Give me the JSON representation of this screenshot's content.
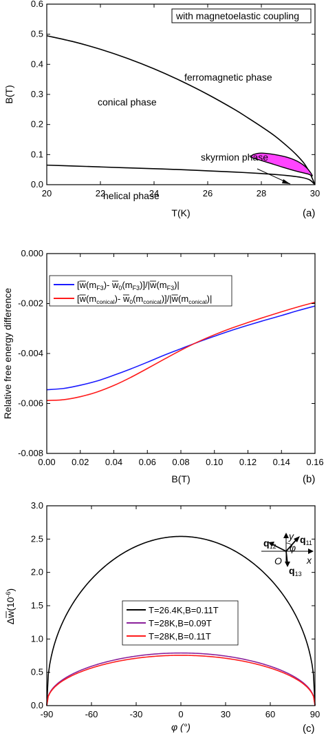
{
  "chart_data": [
    {
      "type": "line",
      "panel_label": "(a)",
      "xlabel": "T(K)",
      "ylabel": "B(T)",
      "xlim": [
        20,
        30
      ],
      "ylim": [
        0,
        0.6
      ],
      "xticks": [
        20,
        22,
        24,
        26,
        28,
        30
      ],
      "yticks": [
        0.0,
        0.1,
        0.2,
        0.3,
        0.4,
        0.5,
        0.6
      ],
      "annotations": {
        "box": "with magnetoelastic coupling",
        "conical": "conical phase",
        "ferromagnetic": "ferromagnetic phase",
        "skyrmion": "skyrmion phase",
        "helical": "helical phase"
      },
      "series": [
        {
          "key": "upper_boundary",
          "color": "#000000",
          "x": [
            20,
            21,
            22,
            23,
            24,
            25,
            26,
            27,
            27.5,
            28,
            28.5,
            29,
            29.3,
            29.6,
            29.8,
            30
          ],
          "y": [
            0.495,
            0.475,
            0.45,
            0.42,
            0.385,
            0.345,
            0.3,
            0.25,
            0.222,
            0.193,
            0.162,
            0.125,
            0.1,
            0.07,
            0.04,
            0.0
          ]
        },
        {
          "key": "lower_boundary",
          "color": "#000000",
          "x": [
            20,
            21,
            22,
            23,
            24,
            25,
            26,
            27,
            28,
            28.5,
            29,
            29.5,
            29.8,
            30
          ],
          "y": [
            0.065,
            0.062,
            0.059,
            0.056,
            0.053,
            0.05,
            0.046,
            0.042,
            0.037,
            0.034,
            0.03,
            0.024,
            0.016,
            0.0
          ]
        },
        {
          "key": "skyrmion_pocket",
          "fill": "#ff44ff",
          "x": [
            27.6,
            27.7,
            28.0,
            28.5,
            29.0,
            29.4,
            29.7,
            29.9,
            29.75,
            29.3,
            28.8,
            28.3,
            27.9,
            27.65,
            27.6
          ],
          "y": [
            0.092,
            0.1,
            0.105,
            0.1,
            0.09,
            0.075,
            0.055,
            0.03,
            0.035,
            0.045,
            0.058,
            0.072,
            0.083,
            0.09,
            0.092
          ]
        }
      ]
    },
    {
      "type": "line",
      "panel_label": "(b)",
      "xlabel": "B(T)",
      "ylabel": "Relative free energy difference",
      "xlim": [
        0,
        0.16
      ],
      "ylim": [
        -0.008,
        0
      ],
      "xticks": [
        0.0,
        0.02,
        0.04,
        0.06,
        0.08,
        0.1,
        0.12,
        0.14,
        0.16
      ],
      "xtick_labels": [
        "0.00",
        "0.02",
        "0.04",
        "0.06",
        "0.08",
        "0.10",
        "0.12",
        "0.14",
        "0.16"
      ],
      "yticks": [
        -0.008,
        -0.006,
        -0.004,
        -0.002,
        0.0
      ],
      "ytick_labels": [
        "-0.008",
        "-0.006",
        "-0.004",
        "-0.002",
        "0.000"
      ],
      "series": [
        {
          "key": "F3",
          "legend": {
            "a": "[",
            "b": "w",
            "c": "(m",
            "d": "F3",
            "e": ")- ",
            "f": "w",
            "g": "0",
            "h": "(m",
            "i": "F3",
            "j": ")]/|",
            "k": "w",
            "l": "(m",
            "m": "F3",
            "n": ")|"
          },
          "color": "#1a1aff",
          "x": [
            0.0,
            0.01,
            0.02,
            0.03,
            0.04,
            0.05,
            0.06,
            0.07,
            0.08,
            0.09,
            0.1,
            0.11,
            0.12,
            0.13,
            0.14,
            0.15,
            0.16
          ],
          "y": [
            -0.00545,
            -0.0054,
            -0.00527,
            -0.0051,
            -0.00487,
            -0.00462,
            -0.00435,
            -0.00407,
            -0.00381,
            -0.00355,
            -0.00331,
            -0.00308,
            -0.00287,
            -0.00267,
            -0.00248,
            -0.00228,
            -0.0021
          ]
        },
        {
          "key": "conical",
          "legend": {
            "a": "[",
            "b": "w",
            "c": "(m",
            "d": "conical",
            "e": ")- ",
            "f": "w",
            "g": "0",
            "h": "(m",
            "i": "conical",
            "j": ")]/|",
            "k": "w",
            "l": "(m",
            "m": "conical",
            "n": ")|"
          },
          "color": "#ff1a1a",
          "x": [
            0.0,
            0.01,
            0.02,
            0.03,
            0.04,
            0.05,
            0.06,
            0.07,
            0.08,
            0.09,
            0.1,
            0.11,
            0.12,
            0.13,
            0.14,
            0.15,
            0.16
          ],
          "y": [
            -0.00588,
            -0.00585,
            -0.00573,
            -0.00554,
            -0.00528,
            -0.00496,
            -0.0046,
            -0.00423,
            -0.00387,
            -0.00354,
            -0.00325,
            -0.00299,
            -0.00276,
            -0.00254,
            -0.00233,
            -0.00213,
            -0.00195
          ]
        }
      ]
    },
    {
      "type": "line",
      "panel_label": "(c)",
      "xlabel": "φ (°)",
      "ylabel": {
        "a": "Δ",
        "b": "w",
        "c": "(10",
        "d": "-6",
        "e": ")"
      },
      "xlim": [
        -90,
        90
      ],
      "ylim": [
        0,
        3.0
      ],
      "xticks": [
        -90,
        -60,
        -30,
        0,
        30,
        60,
        90
      ],
      "yticks": [
        0.0,
        0.5,
        1.0,
        1.5,
        2.0,
        2.5,
        3.0
      ],
      "ytick_labels": [
        "0.0",
        "0.5",
        "1.0",
        "1.5",
        "2.0",
        "2.5",
        "3.0"
      ],
      "inset_labels": {
        "y": "y",
        "x": "x",
        "origin": "O",
        "phi": "φ",
        "q": "q",
        "q11": "11",
        "q12": "12",
        "q13": "13"
      },
      "series": [
        {
          "key": "s1",
          "legend": "T=26.4K,B=0.11T",
          "color": "#000000",
          "peak": 2.54
        },
        {
          "key": "s2",
          "legend": "T=28K,B=0.09T",
          "color": "#8a1f9a",
          "peak": 0.79
        },
        {
          "key": "s3",
          "legend": "T=28K,B=0.11T",
          "color": "#ff1a1a",
          "peak": 0.755
        }
      ]
    }
  ]
}
